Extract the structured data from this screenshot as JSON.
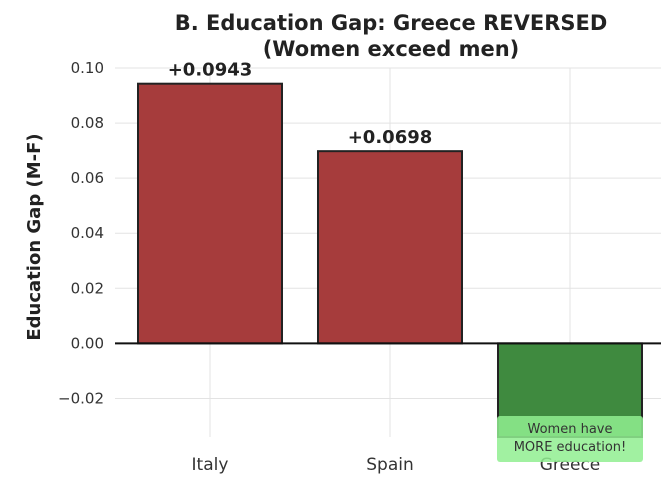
{
  "chart_data": {
    "type": "bar",
    "title_lines": [
      "B. Education Gap: Greece REVERSED",
      "(Women exceed men)"
    ],
    "xlabel": "",
    "ylabel": "Education Gap (M-F)",
    "categories": [
      "Italy",
      "Spain",
      "Greece"
    ],
    "values": [
      0.0943,
      0.0698,
      -0.035
    ],
    "bar_labels": [
      "+0.0943",
      "+0.0698",
      ""
    ],
    "bar_colors": [
      "#a63c3c",
      "#a63c3c",
      "#3f8a3f"
    ],
    "ylim": [
      -0.034,
      0.1
    ],
    "yticks": [
      -0.02,
      0.0,
      0.02,
      0.04,
      0.06,
      0.08,
      0.1
    ],
    "ytick_labels": [
      "−0.02",
      "0.00",
      "0.02",
      "0.04",
      "0.06",
      "0.08",
      "0.10"
    ],
    "grid": true,
    "annotation": {
      "category": "Greece",
      "lines": [
        "Women have",
        "MORE education!"
      ],
      "background": "#90ee90"
    }
  }
}
